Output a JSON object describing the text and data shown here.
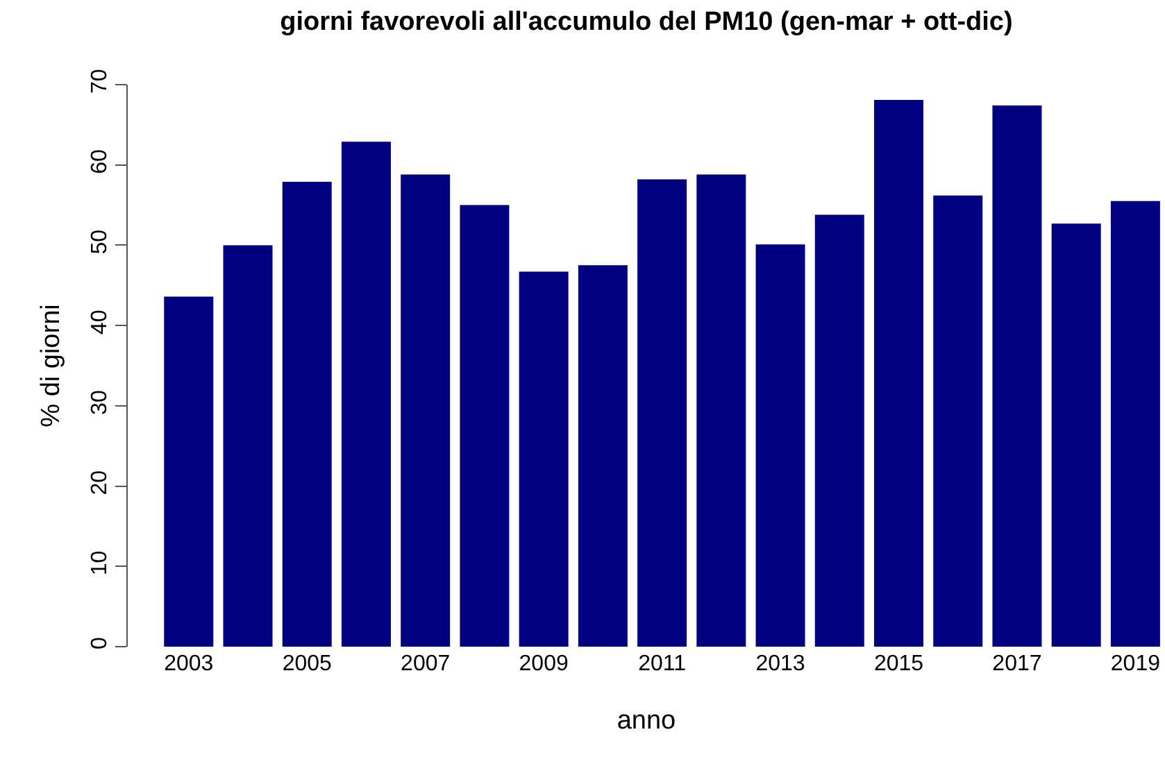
{
  "chart_data": {
    "type": "bar",
    "title": "giorni favorevoli all'accumulo del PM10 (gen-mar + ott-dic)",
    "xlabel": "anno",
    "ylabel": "% di giorni",
    "categories": [
      "2003",
      null,
      "2005",
      null,
      "2007",
      null,
      "2009",
      null,
      "2011",
      null,
      "2013",
      null,
      "2015",
      null,
      "2017",
      null,
      "2019"
    ],
    "values": [
      43.6,
      50.0,
      57.9,
      62.9,
      58.8,
      55.0,
      46.7,
      47.5,
      58.2,
      58.8,
      50.1,
      53.8,
      68.1,
      56.2,
      67.4,
      52.7,
      55.5
    ],
    "color": "#000080",
    "ylim": [
      0,
      70
    ],
    "yticks": [
      0,
      10,
      20,
      30,
      40,
      50,
      60,
      70
    ]
  }
}
